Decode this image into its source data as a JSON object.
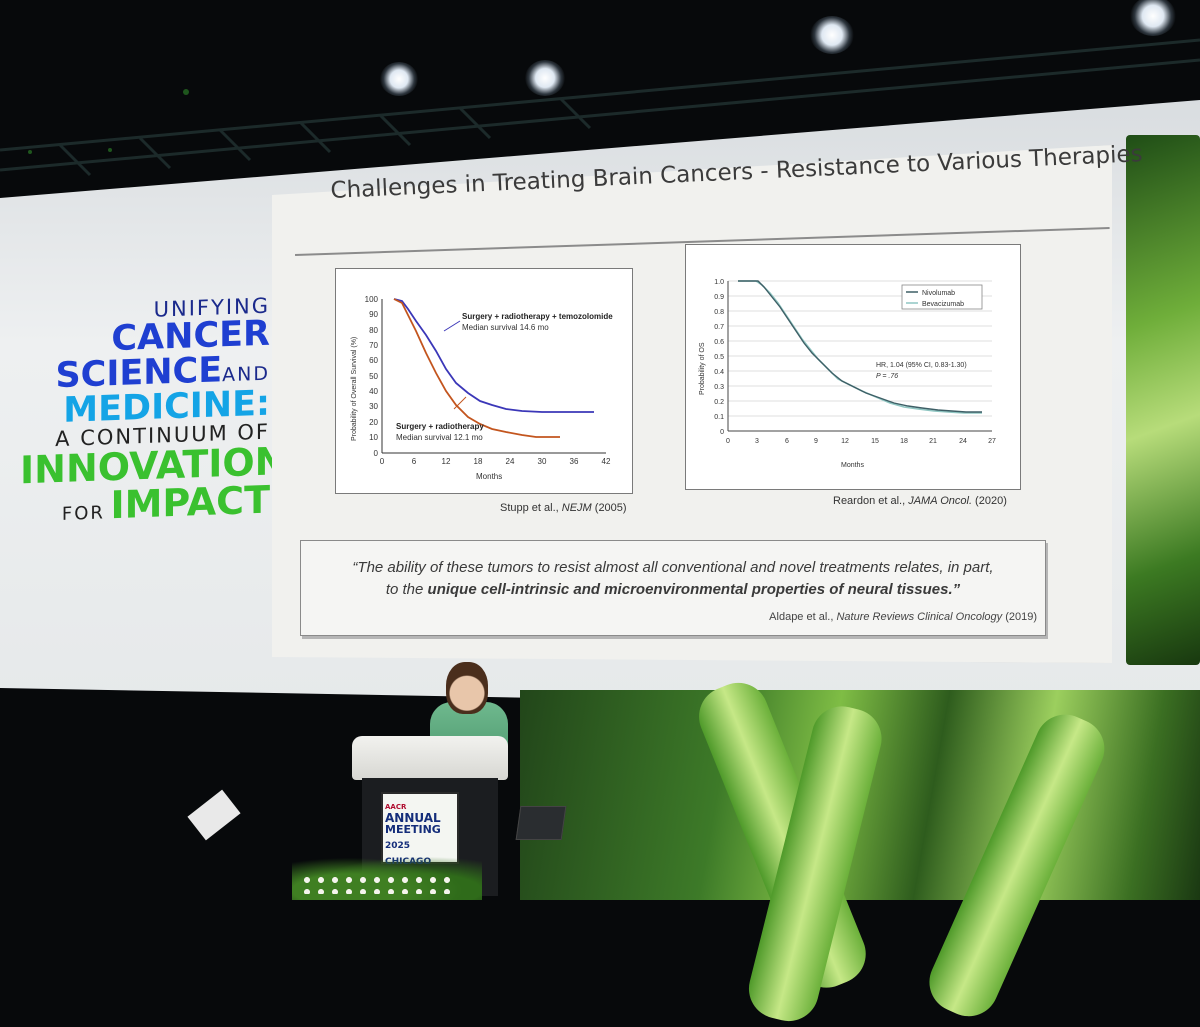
{
  "branding": {
    "line1": "UNIFYING",
    "line2": "CANCER",
    "line3a": "SCIENCE",
    "line3b": "AND",
    "line4": "MEDICINE:",
    "line5": "A CONTINUUM OF",
    "line6": "INNOVATION",
    "line7a": "FOR",
    "line7b": "IMPACT"
  },
  "slide": {
    "title": "Challenges in Treating Brain Cancers - Resistance to Various Therapies",
    "fig1": {
      "ylabel": "Probability of Overall Survival (%)",
      "xlabel": "Months",
      "yticks": [
        "100",
        "90",
        "80",
        "70",
        "60",
        "50",
        "40",
        "30",
        "20",
        "10",
        "0"
      ],
      "xticks": [
        "0",
        "6",
        "12",
        "18",
        "24",
        "30",
        "36",
        "42"
      ],
      "annot1_title": "Surgery + radiotherapy + temozolomide",
      "annot1_sub": "Median survival 14.6 mo",
      "annot2_title": "Surgery + radiotherapy",
      "annot2_sub": "Median survival 12.1 mo",
      "cite_prefix": "Stupp et al., ",
      "cite_journal": "NEJM",
      "cite_suffix": " (2005)"
    },
    "fig2": {
      "ylabel": "Probability of OS",
      "xlabel": "Months",
      "yticks": [
        "1.0",
        "0.9",
        "0.8",
        "0.7",
        "0.6",
        "0.5",
        "0.4",
        "0.3",
        "0.2",
        "0.1",
        "0"
      ],
      "xticks": [
        "0",
        "3",
        "6",
        "9",
        "12",
        "15",
        "18",
        "21",
        "24",
        "27"
      ],
      "legend1": "Nivolumab",
      "legend2": "Bevacizumab",
      "hr": "HR, 1.04 (95% CI, 0.83-1.30)",
      "p": "P = .76",
      "cite_prefix": "Reardon et al., ",
      "cite_journal": "JAMA Oncol.",
      "cite_suffix": " (2020)"
    },
    "quote": {
      "line1": "“The ability of these tumors to resist almost all conventional and novel treatments relates, in part,",
      "line2_plain": "to the ",
      "line2_bold": "unique cell-intrinsic and microenvironmental properties of neural tissues.”",
      "cite_prefix": "Aldape et al., ",
      "cite_journal": "Nature Reviews Clinical Oncology",
      "cite_suffix": " (2019)"
    }
  },
  "podium_sign": {
    "org": "AACR",
    "l1": "ANNUAL",
    "l2": "MEETING",
    "l3": "2025 CHICAGO"
  },
  "colors": {
    "curve_blue": "#3b37b8",
    "curve_orange": "#c3551e",
    "curve_nivo": "#3e5f66",
    "curve_beva": "#8fc6c2",
    "brand_green": "#3ac12f",
    "brand_blue": "#1f3fd1"
  }
}
